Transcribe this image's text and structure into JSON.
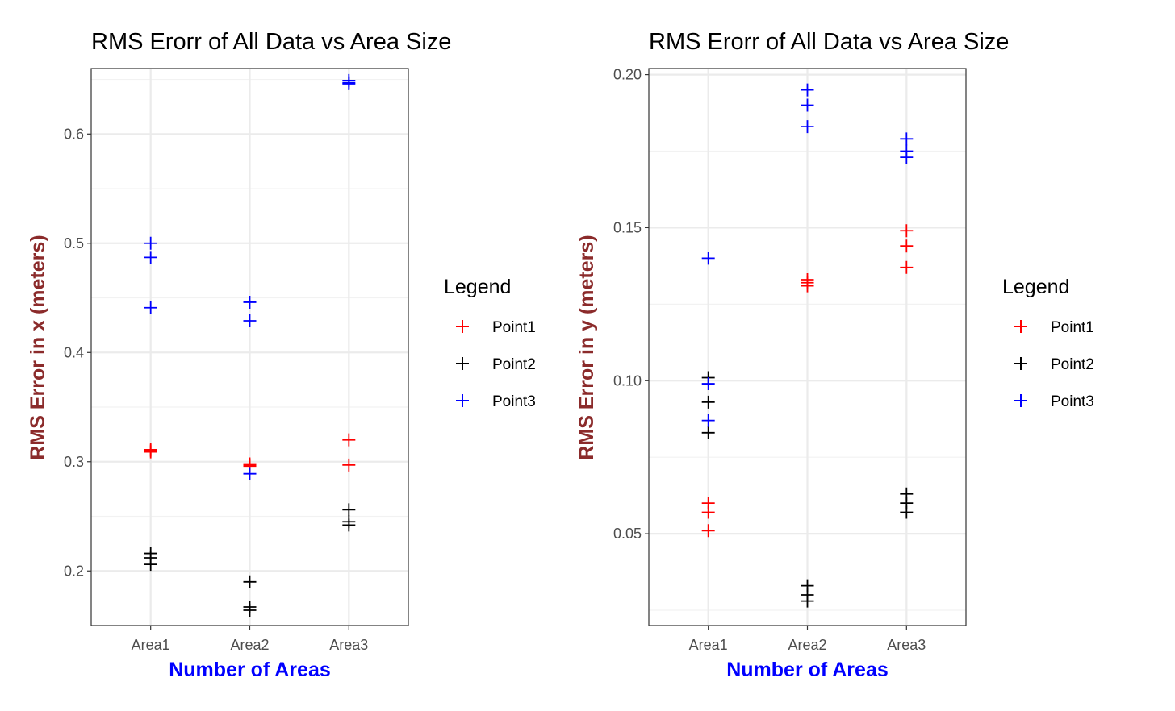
{
  "chart_data": [
    {
      "type": "scatter",
      "title": "RMS Erorr of All Data vs Area Size",
      "xlabel": "Number of Areas",
      "ylabel": "RMS Error in x (meters)",
      "categories": [
        "Area1",
        "Area2",
        "Area3"
      ],
      "ylim": [
        0.15,
        0.66
      ],
      "yticks": [
        0.2,
        0.3,
        0.4,
        0.5,
        0.6
      ],
      "ytick_labels": [
        "0.2",
        "0.3",
        "0.4",
        "0.5",
        "0.6"
      ],
      "grid": true,
      "legend": {
        "title": "Legend",
        "placement": "right"
      },
      "series": [
        {
          "name": "Point1",
          "color": "#ff0000",
          "points": [
            [
              "Area1",
              0.311
            ],
            [
              "Area1",
              0.31
            ],
            [
              "Area1",
              0.309
            ],
            [
              "Area2",
              0.298
            ],
            [
              "Area2",
              0.297
            ],
            [
              "Area2",
              0.296
            ],
            [
              "Area3",
              0.32
            ],
            [
              "Area3",
              0.297
            ]
          ]
        },
        {
          "name": "Point2",
          "color": "#000000",
          "points": [
            [
              "Area1",
              0.216
            ],
            [
              "Area1",
              0.212
            ],
            [
              "Area1",
              0.206
            ],
            [
              "Area2",
              0.19
            ],
            [
              "Area2",
              0.167
            ],
            [
              "Area2",
              0.164
            ],
            [
              "Area3",
              0.256
            ],
            [
              "Area3",
              0.245
            ],
            [
              "Area3",
              0.242
            ]
          ]
        },
        {
          "name": "Point3",
          "color": "#0000ff",
          "points": [
            [
              "Area1",
              0.5
            ],
            [
              "Area1",
              0.487
            ],
            [
              "Area1",
              0.441
            ],
            [
              "Area2",
              0.446
            ],
            [
              "Area2",
              0.429
            ],
            [
              "Area2",
              0.289
            ],
            [
              "Area3",
              0.649
            ],
            [
              "Area3",
              0.647
            ],
            [
              "Area3",
              0.646
            ]
          ]
        }
      ]
    },
    {
      "type": "scatter",
      "title": "RMS Erorr of All Data vs Area Size",
      "xlabel": "Number of Areas",
      "ylabel": "RMS Error in y (meters)",
      "categories": [
        "Area1",
        "Area2",
        "Area3"
      ],
      "ylim": [
        0.02,
        0.202
      ],
      "yticks": [
        0.05,
        0.1,
        0.15,
        0.2
      ],
      "ytick_labels": [
        "0.05",
        "0.10",
        "0.15",
        "0.20"
      ],
      "grid": true,
      "legend": {
        "title": "Legend",
        "placement": "right"
      },
      "series": [
        {
          "name": "Point1",
          "color": "#ff0000",
          "points": [
            [
              "Area1",
              0.06
            ],
            [
              "Area1",
              0.057
            ],
            [
              "Area1",
              0.051
            ],
            [
              "Area2",
              0.133
            ],
            [
              "Area2",
              0.132
            ],
            [
              "Area2",
              0.131
            ],
            [
              "Area3",
              0.149
            ],
            [
              "Area3",
              0.144
            ],
            [
              "Area3",
              0.137
            ]
          ]
        },
        {
          "name": "Point2",
          "color": "#000000",
          "points": [
            [
              "Area1",
              0.101
            ],
            [
              "Area1",
              0.093
            ],
            [
              "Area1",
              0.083
            ],
            [
              "Area2",
              0.033
            ],
            [
              "Area2",
              0.03
            ],
            [
              "Area2",
              0.028
            ],
            [
              "Area3",
              0.063
            ],
            [
              "Area3",
              0.06
            ],
            [
              "Area3",
              0.057
            ]
          ]
        },
        {
          "name": "Point3",
          "color": "#0000ff",
          "points": [
            [
              "Area1",
              0.14
            ],
            [
              "Area1",
              0.099
            ],
            [
              "Area1",
              0.087
            ],
            [
              "Area2",
              0.195
            ],
            [
              "Area2",
              0.19
            ],
            [
              "Area2",
              0.183
            ],
            [
              "Area3",
              0.179
            ],
            [
              "Area3",
              0.175
            ],
            [
              "Area3",
              0.173
            ]
          ]
        }
      ]
    }
  ]
}
